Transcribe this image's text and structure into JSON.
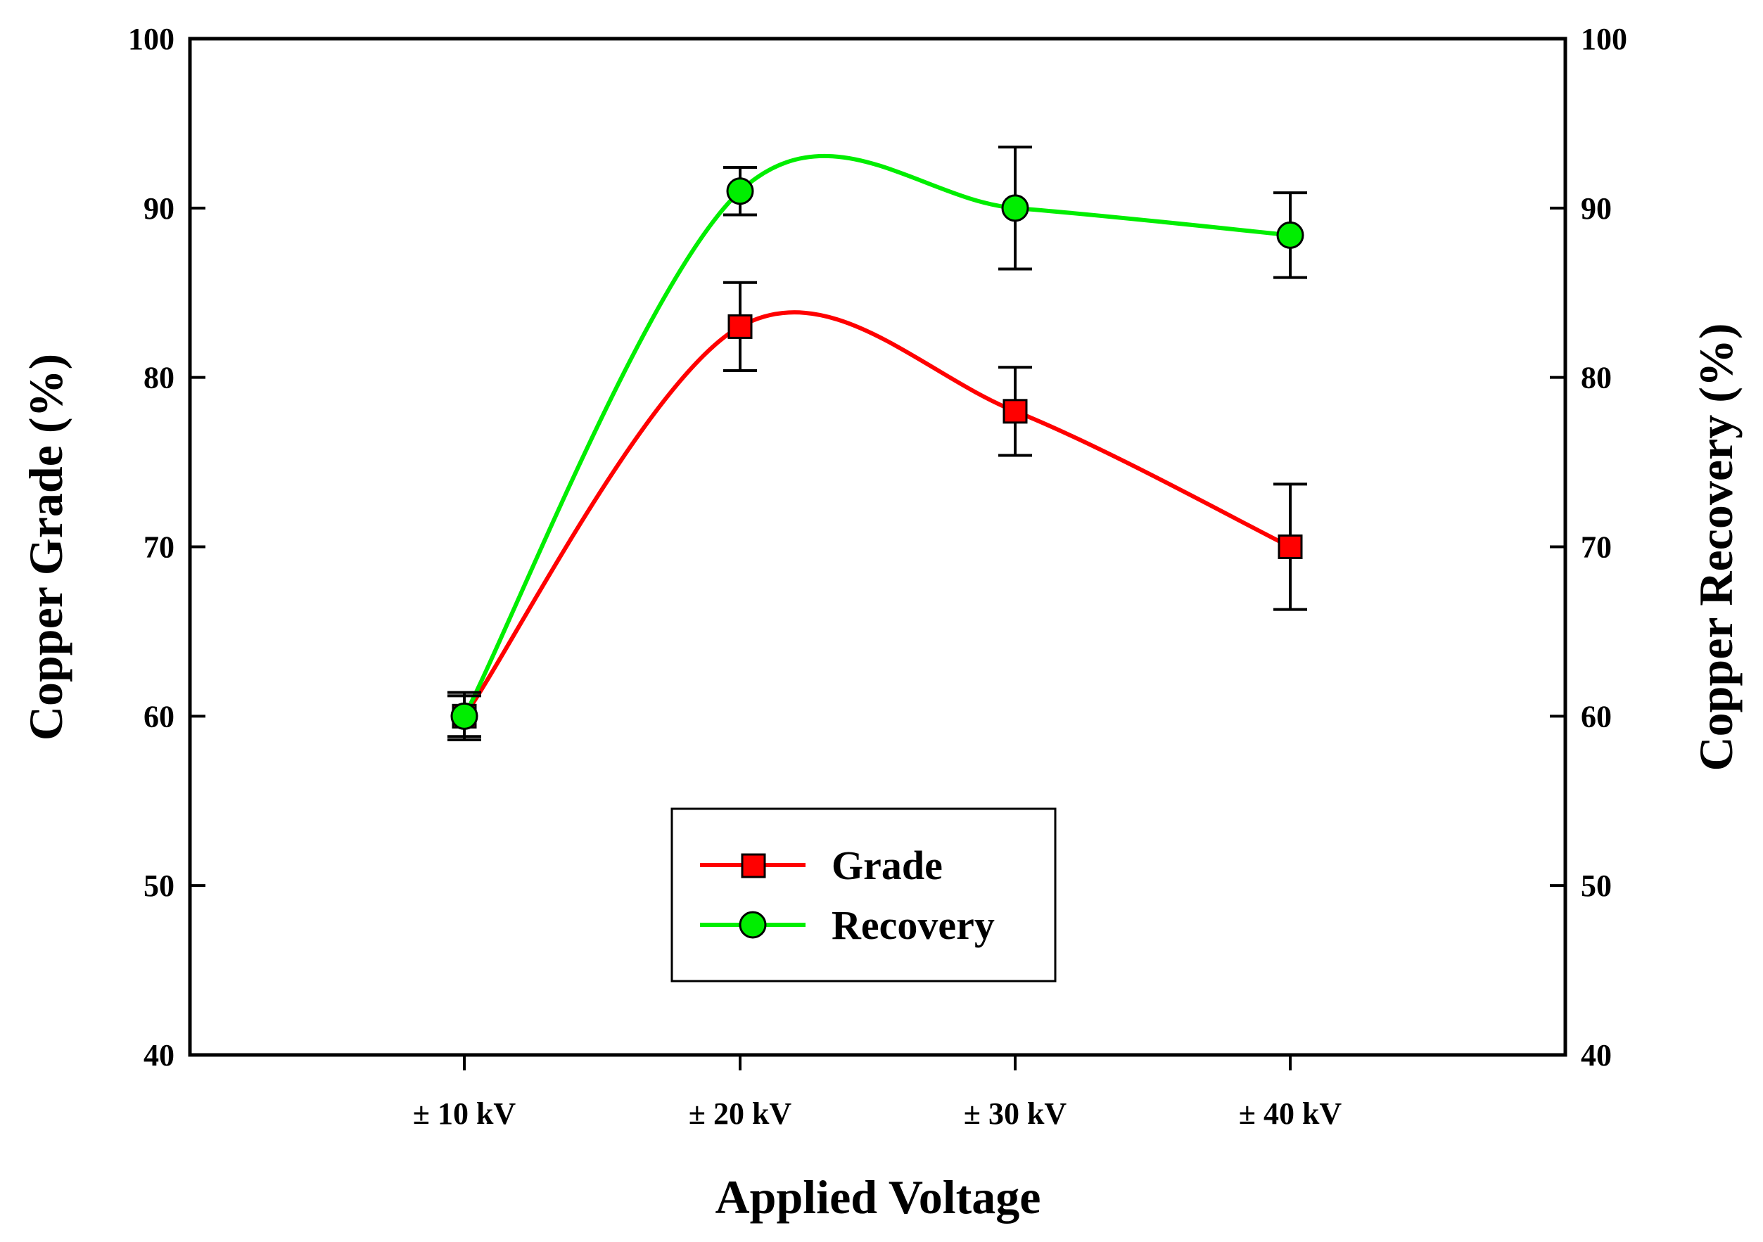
{
  "chart_data": {
    "type": "line",
    "xlabel": "Applied Voltage",
    "ylabel_left": "Copper Grade (%)",
    "ylabel_right": "Copper Recovery (%)",
    "categories": [
      "± 10 kV",
      "± 20 kV",
      "± 30 kV",
      "± 40 kV"
    ],
    "ylim": [
      40,
      100
    ],
    "yticks": [
      "40",
      "50",
      "60",
      "70",
      "80",
      "90",
      "100"
    ],
    "legend_position": "bottom-center",
    "series": [
      {
        "name": "Grade",
        "axis": "left",
        "marker": "square",
        "color": "#ff0000",
        "values": [
          60,
          83,
          78,
          70
        ],
        "errors": [
          1.2,
          2.6,
          2.6,
          3.7
        ]
      },
      {
        "name": "Recovery",
        "axis": "right",
        "marker": "circle",
        "color": "#00ee00",
        "values": [
          60,
          91,
          90,
          88.4
        ],
        "errors": [
          1.4,
          1.4,
          3.6,
          2.5
        ]
      }
    ]
  }
}
